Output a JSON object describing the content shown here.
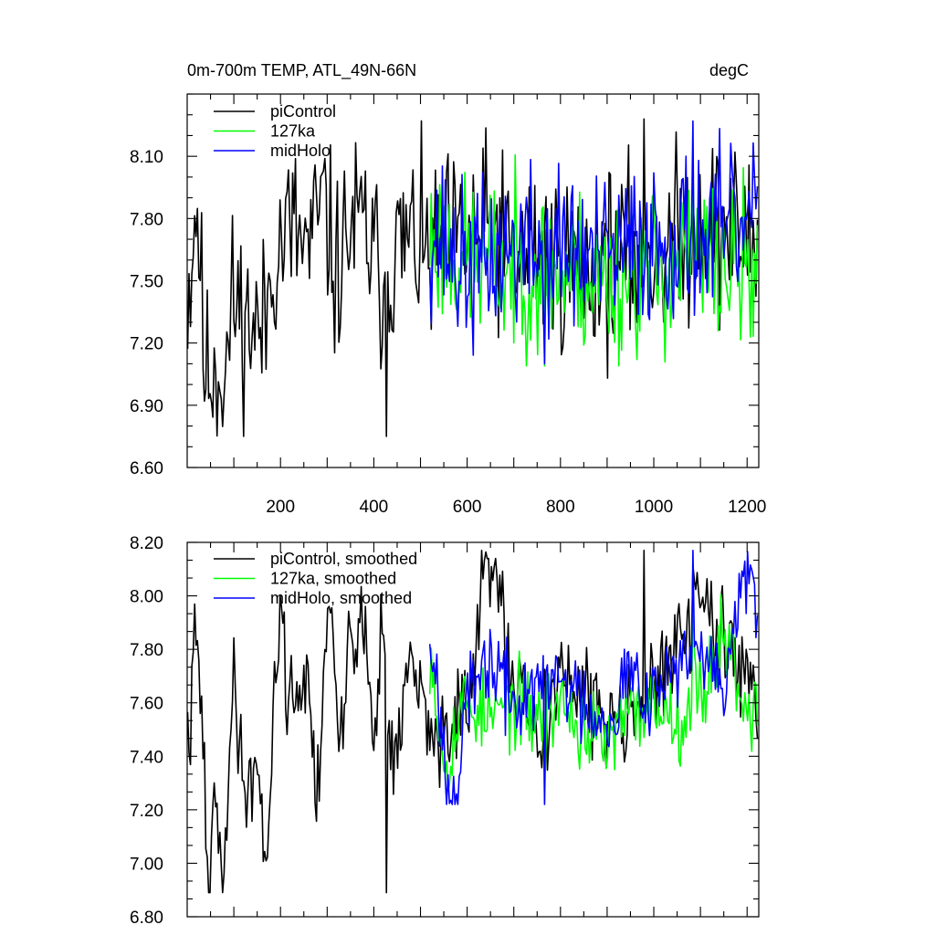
{
  "chart_data": [
    {
      "type": "line",
      "title_left": "0m-700m TEMP, ATL_49N-66N",
      "title_right": "degC",
      "xlim": [
        0,
        1225
      ],
      "ylim": [
        6.6,
        8.4
      ],
      "yticks": [
        6.6,
        6.9,
        7.2,
        7.5,
        7.8,
        8.1
      ],
      "ytick_labels": [
        "6.60",
        "6.90",
        "7.20",
        "7.50",
        "7.80",
        "8.10"
      ],
      "xticks": [
        200,
        400,
        600,
        800,
        1000,
        1200
      ],
      "xtick_labels": [
        "200",
        "400",
        "600",
        "800",
        "1000",
        "1200"
      ],
      "grid": false,
      "legend_position": "top-left",
      "series": [
        {
          "name": "piControl",
          "color": "#000000",
          "x_start": 1,
          "x_end": 1222,
          "anchors": [
            [
              1,
              7.45
            ],
            [
              20,
              7.85
            ],
            [
              40,
              7.05
            ],
            [
              60,
              7.1
            ],
            [
              80,
              7.05
            ],
            [
              100,
              7.4
            ],
            [
              130,
              7.3
            ],
            [
              160,
              7.25
            ],
            [
              190,
              7.65
            ],
            [
              220,
              7.75
            ],
            [
              260,
              7.65
            ],
            [
              290,
              7.85
            ],
            [
              320,
              7.55
            ],
            [
              350,
              7.75
            ],
            [
              380,
              7.75
            ],
            [
              400,
              7.6
            ],
            [
              420,
              7.5
            ],
            [
              450,
              7.65
            ],
            [
              480,
              7.7
            ],
            [
              520,
              7.6
            ],
            [
              560,
              7.65
            ],
            [
              600,
              7.7
            ],
            [
              650,
              7.75
            ],
            [
              700,
              7.6
            ],
            [
              750,
              7.65
            ],
            [
              800,
              7.6
            ],
            [
              850,
              7.55
            ],
            [
              900,
              7.6
            ],
            [
              950,
              7.6
            ],
            [
              1000,
              7.65
            ],
            [
              1050,
              7.7
            ],
            [
              1100,
              7.8
            ],
            [
              1150,
              7.75
            ],
            [
              1200,
              7.7
            ],
            [
              1222,
              7.65
            ]
          ],
          "min_value": 6.75,
          "max_value": 8.28,
          "noise": 0.22,
          "seed": 11
        },
        {
          "name": "127ka",
          "color": "#00ff00",
          "x_start": 520,
          "x_end": 1222,
          "anchors": [
            [
              520,
              7.7
            ],
            [
              600,
              7.6
            ],
            [
              700,
              7.55
            ],
            [
              800,
              7.55
            ],
            [
              900,
              7.5
            ],
            [
              1000,
              7.55
            ],
            [
              1100,
              7.6
            ],
            [
              1200,
              7.55
            ],
            [
              1222,
              7.5
            ]
          ],
          "min_value": 7.09,
          "max_value": 8.12,
          "noise": 0.2,
          "seed": 23
        },
        {
          "name": "midHolo",
          "color": "#0000ff",
          "x_start": 520,
          "x_end": 1222,
          "anchors": [
            [
              520,
              7.75
            ],
            [
              600,
              7.55
            ],
            [
              700,
              7.65
            ],
            [
              800,
              7.65
            ],
            [
              900,
              7.6
            ],
            [
              1000,
              7.7
            ],
            [
              1100,
              7.7
            ],
            [
              1200,
              7.75
            ],
            [
              1222,
              7.8
            ]
          ],
          "min_value": 7.1,
          "max_value": 8.27,
          "noise": 0.2,
          "seed": 37
        }
      ]
    },
    {
      "type": "line",
      "xlim": [
        0,
        1225
      ],
      "ylim": [
        6.8,
        8.2
      ],
      "yticks": [
        6.8,
        7.0,
        7.2,
        7.4,
        7.6,
        7.8,
        8.0,
        8.2
      ],
      "ytick_labels": [
        "6.80",
        "7.00",
        "7.20",
        "7.40",
        "7.60",
        "7.80",
        "8.00",
        "8.20"
      ],
      "xticks": [
        200,
        400,
        600,
        800,
        1000,
        1200
      ],
      "xtick_labels": [],
      "grid": false,
      "legend_position": "top-left",
      "series": [
        {
          "name": "piControl, smoothed",
          "color": "#000000",
          "x_start": 1,
          "x_end": 1222,
          "anchors": [
            [
              1,
              7.45
            ],
            [
              20,
              7.82
            ],
            [
              30,
              7.6
            ],
            [
              45,
              6.9
            ],
            [
              60,
              7.2
            ],
            [
              75,
              6.95
            ],
            [
              90,
              7.35
            ],
            [
              100,
              7.7
            ],
            [
              120,
              7.3
            ],
            [
              150,
              7.35
            ],
            [
              170,
              7.05
            ],
            [
              190,
              7.7
            ],
            [
              200,
              7.95
            ],
            [
              220,
              7.6
            ],
            [
              250,
              7.7
            ],
            [
              280,
              7.3
            ],
            [
              300,
              7.95
            ],
            [
              330,
              7.45
            ],
            [
              350,
              7.9
            ],
            [
              380,
              7.85
            ],
            [
              400,
              7.5
            ],
            [
              420,
              7.9
            ],
            [
              440,
              7.4
            ],
            [
              460,
              7.5
            ],
            [
              480,
              7.8
            ],
            [
              500,
              7.6
            ],
            [
              530,
              7.45
            ],
            [
              560,
              7.5
            ],
            [
              600,
              7.6
            ],
            [
              650,
              8.15
            ],
            [
              700,
              7.65
            ],
            [
              750,
              7.5
            ],
            [
              800,
              7.7
            ],
            [
              850,
              7.6
            ],
            [
              900,
              7.55
            ],
            [
              950,
              7.6
            ],
            [
              1000,
              7.65
            ],
            [
              1050,
              7.8
            ],
            [
              1100,
              8.0
            ],
            [
              1150,
              7.8
            ],
            [
              1200,
              7.75
            ],
            [
              1222,
              7.6
            ]
          ],
          "min_value": 6.89,
          "max_value": 8.17,
          "noise": 0.09,
          "seed": 41
        },
        {
          "name": "127ka, smoothed",
          "color": "#00ff00",
          "x_start": 520,
          "x_end": 1222,
          "anchors": [
            [
              520,
              7.8
            ],
            [
              550,
              7.4
            ],
            [
              600,
              7.6
            ],
            [
              650,
              7.55
            ],
            [
              700,
              7.6
            ],
            [
              750,
              7.55
            ],
            [
              800,
              7.6
            ],
            [
              850,
              7.5
            ],
            [
              900,
              7.45
            ],
            [
              950,
              7.55
            ],
            [
              1000,
              7.6
            ],
            [
              1050,
              7.55
            ],
            [
              1100,
              7.65
            ],
            [
              1150,
              7.85
            ],
            [
              1200,
              7.6
            ],
            [
              1222,
              7.55
            ]
          ],
          "min_value": 7.23,
          "max_value": 8.04,
          "noise": 0.08,
          "seed": 53
        },
        {
          "name": "midHolo, smoothed",
          "color": "#0000ff",
          "x_start": 520,
          "x_end": 1222,
          "anchors": [
            [
              520,
              7.85
            ],
            [
              560,
              7.35
            ],
            [
              575,
              7.25
            ],
            [
              600,
              7.6
            ],
            [
              650,
              7.75
            ],
            [
              700,
              7.6
            ],
            [
              750,
              7.65
            ],
            [
              800,
              7.7
            ],
            [
              850,
              7.6
            ],
            [
              900,
              7.55
            ],
            [
              950,
              7.7
            ],
            [
              1000,
              7.65
            ],
            [
              1050,
              7.75
            ],
            [
              1100,
              7.75
            ],
            [
              1150,
              7.7
            ],
            [
              1200,
              8.1
            ],
            [
              1222,
              7.85
            ]
          ],
          "min_value": 7.22,
          "max_value": 8.17,
          "noise": 0.08,
          "seed": 67
        }
      ]
    }
  ]
}
